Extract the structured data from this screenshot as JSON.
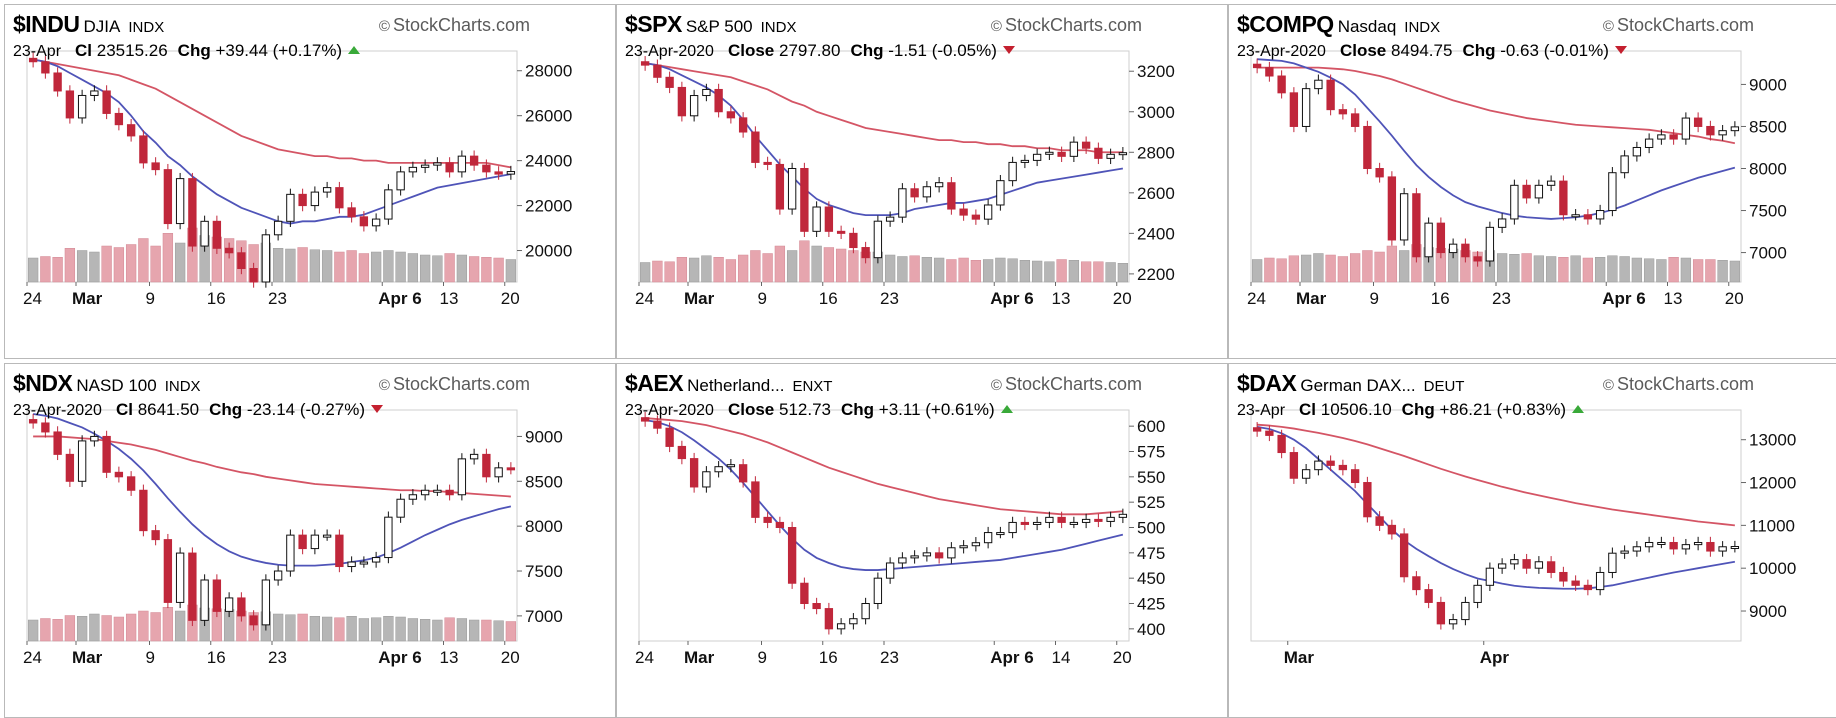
{
  "colors": {
    "up_candle": "#ffffff",
    "down_candle": "#c0273b",
    "black_candle": "#111111",
    "ma_short": "#4f54b8",
    "ma_long": "#d45565",
    "vol_up": "#b6b6b6",
    "vol_down": "#e6a5ae",
    "arrow_up": "#39a939",
    "arrow_down": "#c4202f"
  },
  "brand": "StockCharts.com",
  "panels": [
    {
      "symbol": "$INDU",
      "name": "DJIA",
      "exchange": "INDX",
      "date": "23-Apr",
      "close_label": "Cl",
      "close": "23515.26",
      "chg_label": "Chg",
      "chg": "+39.44 (+0.17%)",
      "direction": "up"
    },
    {
      "symbol": "$SPX",
      "name": "S&P 500",
      "exchange": "INDX",
      "date": "23-Apr-2020",
      "close_label": "Close",
      "close": "2797.80",
      "chg_label": "Chg",
      "chg": "-1.51 (-0.05%)",
      "direction": "down"
    },
    {
      "symbol": "$COMPQ",
      "name": "Nasdaq",
      "exchange": "INDX",
      "date": "23-Apr-2020",
      "close_label": "Close",
      "close": "8494.75",
      "chg_label": "Chg",
      "chg": "-0.63 (-0.01%)",
      "direction": "down"
    },
    {
      "symbol": "$NDX",
      "name": "NASD 100",
      "exchange": "INDX",
      "date": "23-Apr-2020",
      "close_label": "Cl",
      "close": "8641.50",
      "chg_label": "Chg",
      "chg": "-23.14 (-0.27%)",
      "direction": "down"
    },
    {
      "symbol": "$AEX",
      "name": "Netherland...",
      "exchange": "ENXT",
      "date": "23-Apr-2020",
      "close_label": "Close",
      "close": "512.73",
      "chg_label": "Chg",
      "chg": "+3.11 (+0.61%)",
      "direction": "up"
    },
    {
      "symbol": "$DAX",
      "name": "German DAX...",
      "exchange": "DEUT",
      "date": "23-Apr",
      "close_label": "Cl",
      "close": "10506.10",
      "chg_label": "Chg",
      "chg": "+86.21 (+0.83%)",
      "direction": "up"
    }
  ],
  "chart_data": [
    {
      "type": "candlestick",
      "symbol": "$INDU",
      "x_labels": [
        "24",
        "Mar",
        "9",
        "16",
        "23",
        "Apr 6",
        "13",
        "20"
      ],
      "x_label_positions": [
        0,
        4,
        10,
        15,
        20,
        29,
        34,
        39
      ],
      "yticks": [
        20000,
        22000,
        24000,
        26000,
        28000
      ],
      "ylim": [
        18600,
        28700
      ],
      "close": [
        28400,
        27900,
        27100,
        25900,
        26900,
        27100,
        26100,
        25600,
        25100,
        23900,
        23600,
        21200,
        23200,
        20200,
        21300,
        20100,
        19900,
        19200,
        18600,
        20700,
        21300,
        22500,
        22000,
        22600,
        22800,
        21900,
        21500,
        21100,
        21400,
        22700,
        23500,
        23700,
        23800,
        23900,
        23500,
        24200,
        23800,
        23500,
        23400,
        23515
      ],
      "ma_short": [
        28500,
        28400,
        28200,
        27900,
        27600,
        27300,
        27000,
        26600,
        26000,
        25300,
        24800,
        24200,
        23800,
        23300,
        22900,
        22500,
        22200,
        21900,
        21700,
        21500,
        21300,
        21200,
        21300,
        21300,
        21400,
        21500,
        21500,
        21600,
        21800,
        22000,
        22200,
        22400,
        22600,
        22800,
        22900,
        23000,
        23100,
        23200,
        23300,
        23400
      ],
      "ma_long": [
        28500,
        28400,
        28300,
        28200,
        28100,
        28000,
        27900,
        27800,
        27600,
        27400,
        27200,
        26900,
        26600,
        26300,
        26000,
        25700,
        25400,
        25100,
        24900,
        24700,
        24500,
        24400,
        24300,
        24200,
        24200,
        24100,
        24100,
        24000,
        24000,
        23900,
        23900,
        23900,
        23900,
        23900,
        23900,
        23900,
        23900,
        23900,
        23800,
        23700
      ],
      "volume": [
        0.32,
        0.34,
        0.33,
        0.45,
        0.42,
        0.4,
        0.48,
        0.46,
        0.5,
        0.58,
        0.48,
        0.65,
        0.52,
        0.72,
        0.62,
        0.6,
        0.58,
        0.55,
        0.5,
        0.52,
        0.45,
        0.44,
        0.46,
        0.43,
        0.42,
        0.4,
        0.42,
        0.38,
        0.4,
        0.42,
        0.4,
        0.38,
        0.36,
        0.35,
        0.38,
        0.36,
        0.34,
        0.33,
        0.32,
        0.3
      ]
    },
    {
      "type": "candlestick",
      "symbol": "$SPX",
      "x_labels": [
        "24",
        "Mar",
        "9",
        "16",
        "23",
        "Apr 6",
        "13",
        "20"
      ],
      "x_label_positions": [
        0,
        4,
        10,
        15,
        20,
        29,
        34,
        39
      ],
      "yticks": [
        2200,
        2400,
        2600,
        2800,
        3000,
        3200
      ],
      "ylim": [
        2160,
        3280
      ],
      "close": [
        3230,
        3170,
        3120,
        2980,
        3080,
        3110,
        3000,
        2970,
        2900,
        2750,
        2740,
        2520,
        2720,
        2410,
        2530,
        2410,
        2400,
        2330,
        2280,
        2460,
        2480,
        2620,
        2580,
        2630,
        2650,
        2520,
        2490,
        2470,
        2540,
        2660,
        2750,
        2760,
        2790,
        2800,
        2780,
        2850,
        2820,
        2770,
        2790,
        2798
      ],
      "ma_short": [
        3240,
        3230,
        3210,
        3180,
        3150,
        3120,
        3080,
        3030,
        2960,
        2880,
        2810,
        2740,
        2680,
        2620,
        2570,
        2540,
        2520,
        2500,
        2490,
        2490,
        2490,
        2500,
        2520,
        2530,
        2540,
        2550,
        2550,
        2560,
        2570,
        2590,
        2610,
        2630,
        2650,
        2660,
        2670,
        2680,
        2690,
        2700,
        2710,
        2720
      ],
      "ma_long": [
        3240,
        3230,
        3220,
        3210,
        3200,
        3190,
        3180,
        3170,
        3150,
        3130,
        3110,
        3080,
        3050,
        3030,
        3000,
        2980,
        2960,
        2940,
        2920,
        2910,
        2900,
        2890,
        2880,
        2870,
        2860,
        2860,
        2850,
        2850,
        2840,
        2840,
        2830,
        2830,
        2820,
        2820,
        2810,
        2810,
        2810,
        2800,
        2800,
        2800
      ],
      "volume": [
        0.26,
        0.28,
        0.27,
        0.33,
        0.32,
        0.35,
        0.33,
        0.3,
        0.36,
        0.42,
        0.38,
        0.48,
        0.42,
        0.55,
        0.48,
        0.46,
        0.44,
        0.42,
        0.4,
        0.4,
        0.36,
        0.34,
        0.35,
        0.33,
        0.32,
        0.3,
        0.32,
        0.29,
        0.3,
        0.32,
        0.31,
        0.29,
        0.28,
        0.27,
        0.3,
        0.29,
        0.27,
        0.27,
        0.26,
        0.25
      ]
    },
    {
      "type": "candlestick",
      "symbol": "$COMPQ",
      "x_labels": [
        "24",
        "Mar",
        "9",
        "16",
        "23",
        "Apr 6",
        "13",
        "20"
      ],
      "x_label_positions": [
        0,
        4,
        10,
        15,
        20,
        29,
        34,
        39
      ],
      "yticks": [
        7000,
        7500,
        8000,
        8500,
        9000
      ],
      "ylim": [
        6650,
        9350
      ],
      "close": [
        9200,
        9100,
        8900,
        8500,
        8950,
        9050,
        8700,
        8650,
        8500,
        8000,
        7900,
        7150,
        7700,
        6950,
        7350,
        7000,
        7100,
        6950,
        6900,
        7300,
        7400,
        7800,
        7650,
        7800,
        7850,
        7450,
        7450,
        7400,
        7500,
        7950,
        8150,
        8250,
        8350,
        8400,
        8350,
        8600,
        8500,
        8400,
        8450,
        8495
      ],
      "ma_short": [
        9300,
        9290,
        9280,
        9250,
        9200,
        9150,
        9080,
        9000,
        8880,
        8720,
        8560,
        8390,
        8210,
        8040,
        7900,
        7780,
        7680,
        7600,
        7550,
        7510,
        7470,
        7440,
        7420,
        7410,
        7400,
        7410,
        7420,
        7440,
        7470,
        7510,
        7560,
        7620,
        7680,
        7740,
        7790,
        7840,
        7890,
        7930,
        7970,
        8010
      ],
      "ma_long": [
        9200,
        9200,
        9200,
        9200,
        9200,
        9200,
        9190,
        9180,
        9160,
        9130,
        9100,
        9060,
        9010,
        8960,
        8910,
        8860,
        8810,
        8770,
        8730,
        8690,
        8660,
        8630,
        8600,
        8580,
        8560,
        8540,
        8520,
        8510,
        8500,
        8490,
        8480,
        8470,
        8460,
        8440,
        8420,
        8400,
        8380,
        8350,
        8330,
        8300
      ],
      "volume": [
        0.3,
        0.32,
        0.31,
        0.35,
        0.36,
        0.38,
        0.36,
        0.34,
        0.38,
        0.42,
        0.4,
        0.48,
        0.42,
        0.5,
        0.46,
        0.45,
        0.44,
        0.42,
        0.4,
        0.42,
        0.38,
        0.37,
        0.38,
        0.35,
        0.34,
        0.33,
        0.35,
        0.32,
        0.33,
        0.35,
        0.34,
        0.32,
        0.31,
        0.3,
        0.33,
        0.32,
        0.3,
        0.3,
        0.29,
        0.28
      ]
    },
    {
      "type": "candlestick",
      "symbol": "$NDX",
      "x_labels": [
        "24",
        "Mar",
        "9",
        "16",
        "23",
        "Apr 6",
        "13",
        "20"
      ],
      "x_label_positions": [
        0,
        4,
        10,
        15,
        20,
        29,
        34,
        39
      ],
      "yticks": [
        7000,
        7500,
        8000,
        8500,
        9000
      ],
      "ylim": [
        6720,
        9250
      ],
      "close": [
        9150,
        9050,
        8800,
        8500,
        8950,
        9000,
        8600,
        8550,
        8400,
        7950,
        7850,
        7150,
        7700,
        6950,
        7400,
        7050,
        7200,
        7000,
        6900,
        7400,
        7500,
        7900,
        7750,
        7900,
        7900,
        7550,
        7600,
        7600,
        7650,
        8100,
        8300,
        8350,
        8400,
        8400,
        8350,
        8750,
        8800,
        8550,
        8650,
        8641
      ],
      "ma_short": [
        9250,
        9230,
        9200,
        9150,
        9100,
        9030,
        8950,
        8860,
        8750,
        8620,
        8470,
        8310,
        8160,
        8020,
        7900,
        7800,
        7720,
        7660,
        7620,
        7590,
        7570,
        7560,
        7560,
        7560,
        7570,
        7580,
        7600,
        7620,
        7650,
        7700,
        7760,
        7830,
        7900,
        7960,
        8020,
        8070,
        8110,
        8150,
        8190,
        8220
      ],
      "ma_long": [
        9000,
        9000,
        9000,
        8990,
        8980,
        8970,
        8950,
        8930,
        8910,
        8880,
        8850,
        8810,
        8770,
        8730,
        8700,
        8660,
        8630,
        8600,
        8580,
        8550,
        8530,
        8510,
        8490,
        8470,
        8460,
        8450,
        8440,
        8430,
        8420,
        8410,
        8400,
        8400,
        8390,
        8390,
        8380,
        8370,
        8360,
        8350,
        8340,
        8330
      ],
      "volume": [
        0.28,
        0.3,
        0.29,
        0.34,
        0.33,
        0.36,
        0.34,
        0.32,
        0.36,
        0.4,
        0.38,
        0.45,
        0.4,
        0.48,
        0.44,
        0.43,
        0.42,
        0.4,
        0.38,
        0.39,
        0.36,
        0.35,
        0.36,
        0.33,
        0.32,
        0.31,
        0.33,
        0.3,
        0.31,
        0.33,
        0.32,
        0.3,
        0.29,
        0.28,
        0.31,
        0.3,
        0.28,
        0.28,
        0.27,
        0.26
      ]
    },
    {
      "type": "candlestick",
      "symbol": "$AEX",
      "x_labels": [
        "24",
        "Mar",
        "9",
        "16",
        "23",
        "Apr 6",
        "14",
        "20"
      ],
      "x_label_positions": [
        0,
        4,
        10,
        15,
        20,
        29,
        34,
        39
      ],
      "yticks": [
        400,
        425,
        450,
        475,
        500,
        525,
        550,
        575,
        600
      ],
      "ylim": [
        388,
        612
      ],
      "close": [
        605,
        598,
        580,
        568,
        540,
        555,
        560,
        562,
        545,
        510,
        505,
        500,
        445,
        425,
        420,
        400,
        405,
        410,
        425,
        450,
        465,
        470,
        472,
        475,
        470,
        480,
        482,
        485,
        495,
        495,
        505,
        503,
        505,
        510,
        505,
        505,
        508,
        506,
        510,
        513
      ],
      "ma_short": [
        606,
        604,
        600,
        594,
        586,
        577,
        568,
        557,
        544,
        530,
        516,
        502,
        489,
        478,
        470,
        465,
        461,
        459,
        458,
        458,
        459,
        460,
        461,
        462,
        463,
        464,
        465,
        466,
        467,
        468,
        470,
        472,
        474,
        476,
        478,
        481,
        484,
        487,
        490,
        493
      ],
      "ma_long": [
        608,
        607,
        606,
        605,
        603,
        601,
        598,
        595,
        592,
        588,
        584,
        579,
        574,
        569,
        564,
        559,
        555,
        551,
        547,
        543,
        540,
        537,
        534,
        531,
        528,
        526,
        524,
        522,
        520,
        518,
        517,
        516,
        515,
        514,
        513,
        513,
        513,
        514,
        515,
        516
      ],
      "volume": []
    },
    {
      "type": "candlestick",
      "symbol": "$DAX",
      "x_labels": [
        "Mar",
        "Apr"
      ],
      "x_label_positions": [
        3,
        19
      ],
      "yticks": [
        9000,
        10000,
        11000,
        12000,
        13000
      ],
      "ylim": [
        8300,
        13600
      ],
      "close": [
        13200,
        13100,
        12700,
        12100,
        12300,
        12500,
        12400,
        12300,
        12000,
        11200,
        11000,
        10800,
        9800,
        9500,
        9200,
        8700,
        8800,
        9200,
        9600,
        10000,
        10100,
        10200,
        10000,
        10150,
        9900,
        9700,
        9600,
        9500,
        9900,
        10350,
        10400,
        10500,
        10600,
        10600,
        10450,
        10550,
        10600,
        10400,
        10500,
        10506
      ],
      "ma_short": [
        13300,
        13250,
        13150,
        13000,
        12800,
        12550,
        12300,
        12050,
        11800,
        11500,
        11200,
        10900,
        10650,
        10450,
        10280,
        10120,
        9980,
        9860,
        9760,
        9700,
        9640,
        9590,
        9560,
        9540,
        9530,
        9520,
        9520,
        9530,
        9560,
        9600,
        9660,
        9720,
        9780,
        9840,
        9900,
        9950,
        10000,
        10050,
        10100,
        10150
      ],
      "ma_long": [
        13350,
        13330,
        13300,
        13260,
        13210,
        13160,
        13100,
        13040,
        12970,
        12890,
        12800,
        12710,
        12620,
        12520,
        12420,
        12320,
        12230,
        12140,
        12060,
        11980,
        11900,
        11830,
        11760,
        11700,
        11640,
        11580,
        11520,
        11470,
        11420,
        11370,
        11330,
        11290,
        11250,
        11210,
        11170,
        11130,
        11090,
        11060,
        11030,
        11000
      ],
      "volume": []
    }
  ]
}
